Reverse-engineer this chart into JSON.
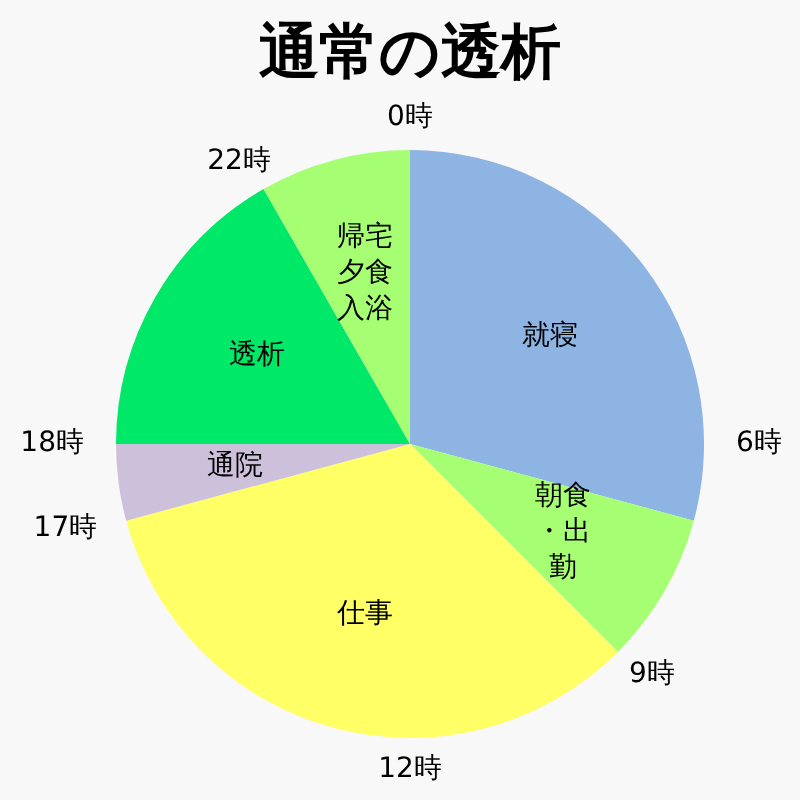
{
  "chart_data": {
    "type": "pie",
    "title": "通常の透析",
    "categories": [
      "就寝",
      "朝食・出勤",
      "仕事",
      "通院",
      "透析",
      "帰宅夕食入浴"
    ],
    "values": [
      29.2,
      8.3,
      33.3,
      4.2,
      16.7,
      8.3
    ],
    "colors": [
      "#8db4e2",
      "#a6ff73",
      "#ffff66",
      "#ccc0da",
      "#00e868",
      "#a6ff73"
    ],
    "annotations": [
      "0時",
      "6時",
      "9時",
      "12時",
      "17時",
      "18時",
      "22時"
    ]
  }
}
